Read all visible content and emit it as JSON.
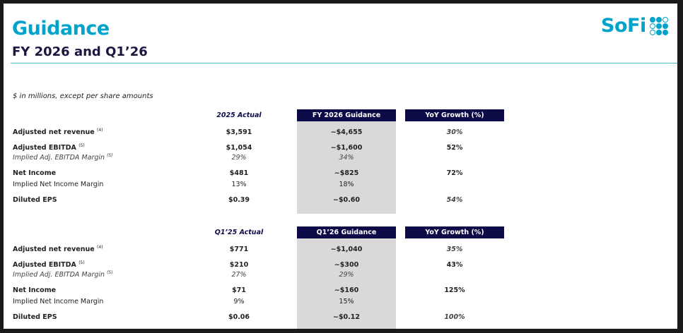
{
  "header": {
    "title": "Guidance",
    "subtitle": "FY 2026 and Q1’26",
    "logo_text": "SoFi"
  },
  "note": "$ in millions, except per share amounts",
  "colors": {
    "brand": "#00a3c9",
    "header_bg": "#0c0a47",
    "guidance_col_bg": "#d9d9d9"
  },
  "tables": [
    {
      "headers": {
        "actual": "2025 Actual",
        "guidance": "FY 2026 Guidance",
        "growth": "YoY Growth (%)"
      },
      "rows": [
        {
          "label": "Adjusted net revenue",
          "sup": "(4)",
          "actual": "$3,591",
          "guidance": "~$4,655",
          "growth": "30%"
        },
        {
          "label": "Adjusted EBITDA",
          "sup": "(5)",
          "actual": "$1,054",
          "guidance": "~$1,600",
          "growth": "52%"
        },
        {
          "label": "Implied Adj. EBITDA Margin",
          "sup": "(5)",
          "actual": "29%",
          "guidance": "34%",
          "growth": ""
        },
        {
          "label": "Net Income",
          "sup": "",
          "actual": "$481",
          "guidance": "~$825",
          "growth": "72%"
        },
        {
          "label": "Implied Net Income Margin",
          "sup": "",
          "actual": "13%",
          "guidance": "18%",
          "growth": ""
        },
        {
          "label": "Diluted EPS",
          "sup": "",
          "actual": "$0.39",
          "guidance": "~$0.60",
          "growth": "54%"
        }
      ]
    },
    {
      "headers": {
        "actual": "Q1’25 Actual",
        "guidance": "Q1’26 Guidance",
        "growth": "YoY Growth (%)"
      },
      "rows": [
        {
          "label": "Adjusted net revenue",
          "sup": "(4)",
          "actual": "$771",
          "guidance": "~$1,040",
          "growth": "35%"
        },
        {
          "label": "Adjusted EBITDA",
          "sup": "(5)",
          "actual": "$210",
          "guidance": "~$300",
          "growth": "43%"
        },
        {
          "label": "Implied Adj. EBITDA Margin",
          "sup": "(5)",
          "actual": "27%",
          "guidance": "29%",
          "growth": ""
        },
        {
          "label": "Net Income",
          "sup": "",
          "actual": "$71",
          "guidance": "~$160",
          "growth": "125%"
        },
        {
          "label": "Implied Net Income Margin",
          "sup": "",
          "actual": "9%",
          "guidance": "15%",
          "growth": ""
        },
        {
          "label": "Diluted EPS",
          "sup": "",
          "actual": "$0.06",
          "guidance": "~$0.12",
          "growth": "100%"
        }
      ]
    }
  ]
}
